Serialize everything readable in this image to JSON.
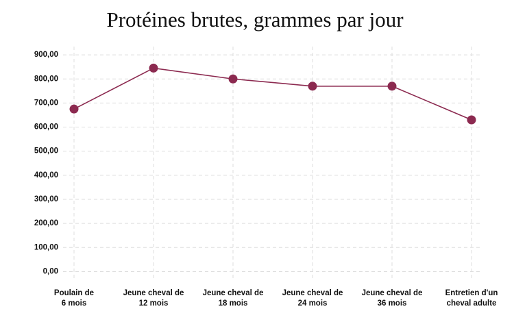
{
  "chart_data": {
    "type": "line",
    "title": "Protéines brutes, grammes par jour",
    "categories": [
      [
        "Poulain de",
        "6 mois"
      ],
      [
        "Jeune cheval de",
        "12 mois"
      ],
      [
        "Jeune cheval de",
        "18 mois"
      ],
      [
        "Jeune cheval de",
        "24 mois"
      ],
      [
        "Jeune cheval de",
        "36 mois"
      ],
      [
        "Entretien d'un",
        "cheval adulte"
      ]
    ],
    "values": [
      675,
      845,
      800,
      770,
      770,
      630
    ],
    "color": "#8c2a50",
    "ylim": [
      -40,
      960
    ],
    "yticks": [
      {
        "value": 0,
        "label": "0,00"
      },
      {
        "value": 100,
        "label": "100,00"
      },
      {
        "value": 200,
        "label": "200,00"
      },
      {
        "value": 300,
        "label": "300,00"
      },
      {
        "value": 400,
        "label": "400,00"
      },
      {
        "value": 500,
        "label": "500,00"
      },
      {
        "value": 600,
        "label": "600,00"
      },
      {
        "value": 700,
        "label": "700,00"
      },
      {
        "value": 800,
        "label": "800,00"
      },
      {
        "value": 900,
        "label": "900,00"
      }
    ],
    "grid": true
  }
}
